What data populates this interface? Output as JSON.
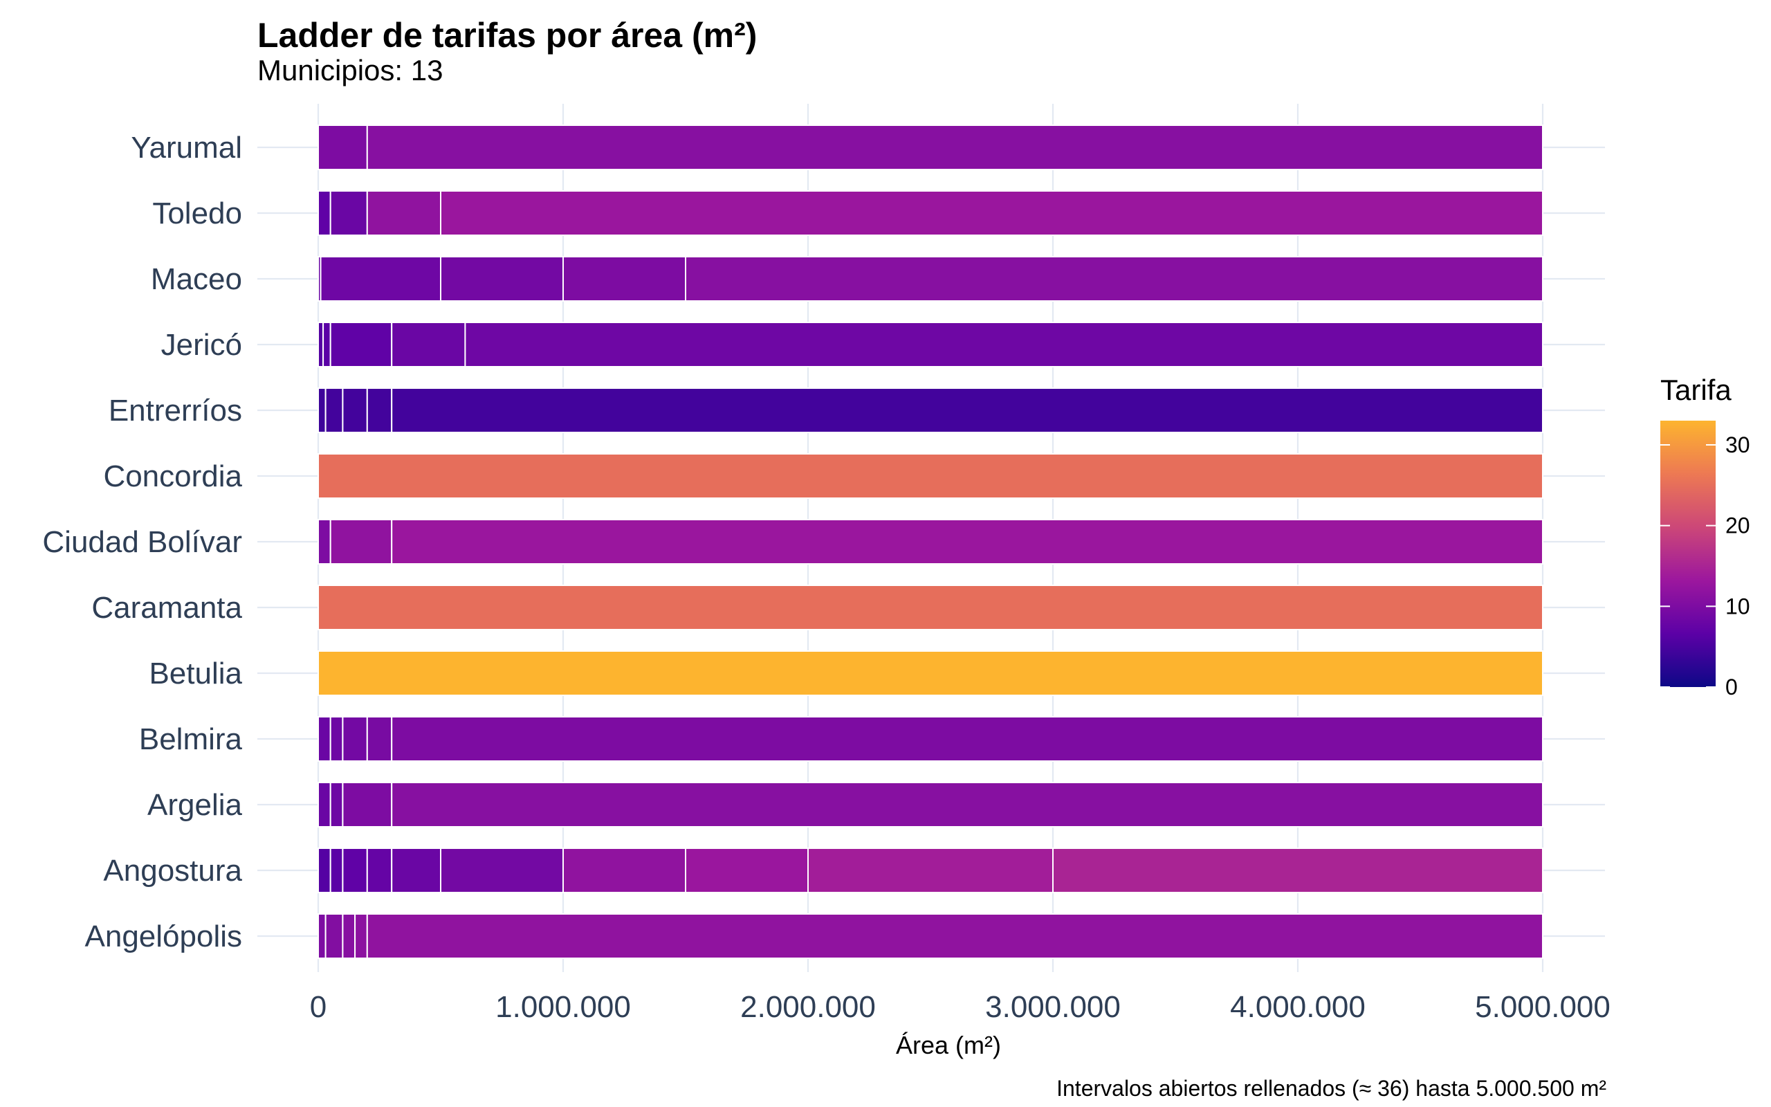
{
  "chart_data": {
    "type": "bar",
    "orientation": "horizontal",
    "stacked": true,
    "title": "Ladder de tarifas por área (m²)",
    "subtitle": "Municipios: 13",
    "xlabel": "Área (m²)",
    "ylabel": "",
    "caption": "Intervalos abiertos rellenados (≈ 36) hasta 5.000.500 m²",
    "xlim": [
      0,
      5000500
    ],
    "x_ticks": [
      0,
      1000000,
      2000000,
      3000000,
      4000000,
      5000000
    ],
    "x_tick_labels": [
      "0",
      "1.000.000",
      "2.000.000",
      "3.000.000",
      "4.000.000",
      "5.000.000"
    ],
    "grid": true,
    "legend": {
      "title": "Tarifa",
      "position": "right",
      "type": "colorbar",
      "range": [
        0,
        33
      ],
      "ticks": [
        0,
        10,
        20,
        30
      ],
      "tick_labels": [
        "0",
        "10",
        "20",
        "30"
      ],
      "palette": [
        "#0d0887",
        "#5c01a6",
        "#9c179e",
        "#cc4778",
        "#ed7953",
        "#fdb42f",
        "#f0f921"
      ]
    },
    "categories": [
      "Yarumal",
      "Toledo",
      "Maceo",
      "Jericó",
      "Entrerríos",
      "Concordia",
      "Ciudad Bolívar",
      "Caramanta",
      "Betulia",
      "Belmira",
      "Argelia",
      "Angostura",
      "Angelópolis"
    ],
    "series": [
      {
        "category": "Yarumal",
        "segments": [
          {
            "from": 0,
            "to": 200000,
            "tarifa": 10
          },
          {
            "from": 200000,
            "to": 5000000,
            "tarifa": 11
          }
        ]
      },
      {
        "category": "Toledo",
        "segments": [
          {
            "from": 0,
            "to": 50000,
            "tarifa": 7
          },
          {
            "from": 50000,
            "to": 200000,
            "tarifa": 8
          },
          {
            "from": 200000,
            "to": 500000,
            "tarifa": 12
          },
          {
            "from": 500000,
            "to": 5000000,
            "tarifa": 13
          }
        ]
      },
      {
        "category": "Maceo",
        "segments": [
          {
            "from": 0,
            "to": 10000,
            "tarifa": 8
          },
          {
            "from": 10000,
            "to": 500000,
            "tarifa": 8.5
          },
          {
            "from": 500000,
            "to": 1000000,
            "tarifa": 9
          },
          {
            "from": 1000000,
            "to": 1500000,
            "tarifa": 10
          },
          {
            "from": 1500000,
            "to": 5000000,
            "tarifa": 11
          }
        ]
      },
      {
        "category": "Jericó",
        "segments": [
          {
            "from": 0,
            "to": 20000,
            "tarifa": 6
          },
          {
            "from": 20000,
            "to": 50000,
            "tarifa": 6.5
          },
          {
            "from": 50000,
            "to": 300000,
            "tarifa": 7
          },
          {
            "from": 300000,
            "to": 600000,
            "tarifa": 8
          },
          {
            "from": 600000,
            "to": 5000000,
            "tarifa": 8.5
          }
        ]
      },
      {
        "category": "Entrerríos",
        "segments": [
          {
            "from": 0,
            "to": 30000,
            "tarifa": 4
          },
          {
            "from": 30000,
            "to": 100000,
            "tarifa": 4.5
          },
          {
            "from": 100000,
            "to": 200000,
            "tarifa": 4.5
          },
          {
            "from": 200000,
            "to": 300000,
            "tarifa": 4.5
          },
          {
            "from": 300000,
            "to": 5000000,
            "tarifa": 4.5
          }
        ]
      },
      {
        "category": "Concordia",
        "segments": [
          {
            "from": 0,
            "to": 5000000,
            "tarifa": 25
          }
        ]
      },
      {
        "category": "Ciudad Bolívar",
        "segments": [
          {
            "from": 0,
            "to": 50000,
            "tarifa": 10
          },
          {
            "from": 50000,
            "to": 300000,
            "tarifa": 12
          },
          {
            "from": 300000,
            "to": 5000000,
            "tarifa": 13
          }
        ]
      },
      {
        "category": "Caramanta",
        "segments": [
          {
            "from": 0,
            "to": 5000000,
            "tarifa": 25
          }
        ]
      },
      {
        "category": "Betulia",
        "segments": [
          {
            "from": 0,
            "to": 5000000,
            "tarifa": 33
          }
        ]
      },
      {
        "category": "Belmira",
        "segments": [
          {
            "from": 0,
            "to": 50000,
            "tarifa": 8
          },
          {
            "from": 50000,
            "to": 100000,
            "tarifa": 8.5
          },
          {
            "from": 100000,
            "to": 200000,
            "tarifa": 9
          },
          {
            "from": 200000,
            "to": 300000,
            "tarifa": 9.5
          },
          {
            "from": 300000,
            "to": 5000000,
            "tarifa": 10
          }
        ]
      },
      {
        "category": "Argelia",
        "segments": [
          {
            "from": 0,
            "to": 50000,
            "tarifa": 8
          },
          {
            "from": 50000,
            "to": 100000,
            "tarifa": 8.5
          },
          {
            "from": 100000,
            "to": 300000,
            "tarifa": 10
          },
          {
            "from": 300000,
            "to": 5000000,
            "tarifa": 11
          }
        ]
      },
      {
        "category": "Angostura",
        "segments": [
          {
            "from": 0,
            "to": 50000,
            "tarifa": 6
          },
          {
            "from": 50000,
            "to": 100000,
            "tarifa": 6.5
          },
          {
            "from": 100000,
            "to": 200000,
            "tarifa": 7
          },
          {
            "from": 200000,
            "to": 300000,
            "tarifa": 7.5
          },
          {
            "from": 300000,
            "to": 500000,
            "tarifa": 8
          },
          {
            "from": 500000,
            "to": 1000000,
            "tarifa": 9
          },
          {
            "from": 1000000,
            "to": 1500000,
            "tarifa": 12
          },
          {
            "from": 1500000,
            "to": 2000000,
            "tarifa": 13
          },
          {
            "from": 2000000,
            "to": 3000000,
            "tarifa": 14
          },
          {
            "from": 3000000,
            "to": 5000000,
            "tarifa": 15
          }
        ]
      },
      {
        "category": "Angelópolis",
        "segments": [
          {
            "from": 0,
            "to": 30000,
            "tarifa": 10
          },
          {
            "from": 30000,
            "to": 100000,
            "tarifa": 10.5
          },
          {
            "from": 100000,
            "to": 150000,
            "tarifa": 11
          },
          {
            "from": 150000,
            "to": 200000,
            "tarifa": 11.5
          },
          {
            "from": 200000,
            "to": 5000000,
            "tarifa": 12
          }
        ]
      }
    ]
  }
}
